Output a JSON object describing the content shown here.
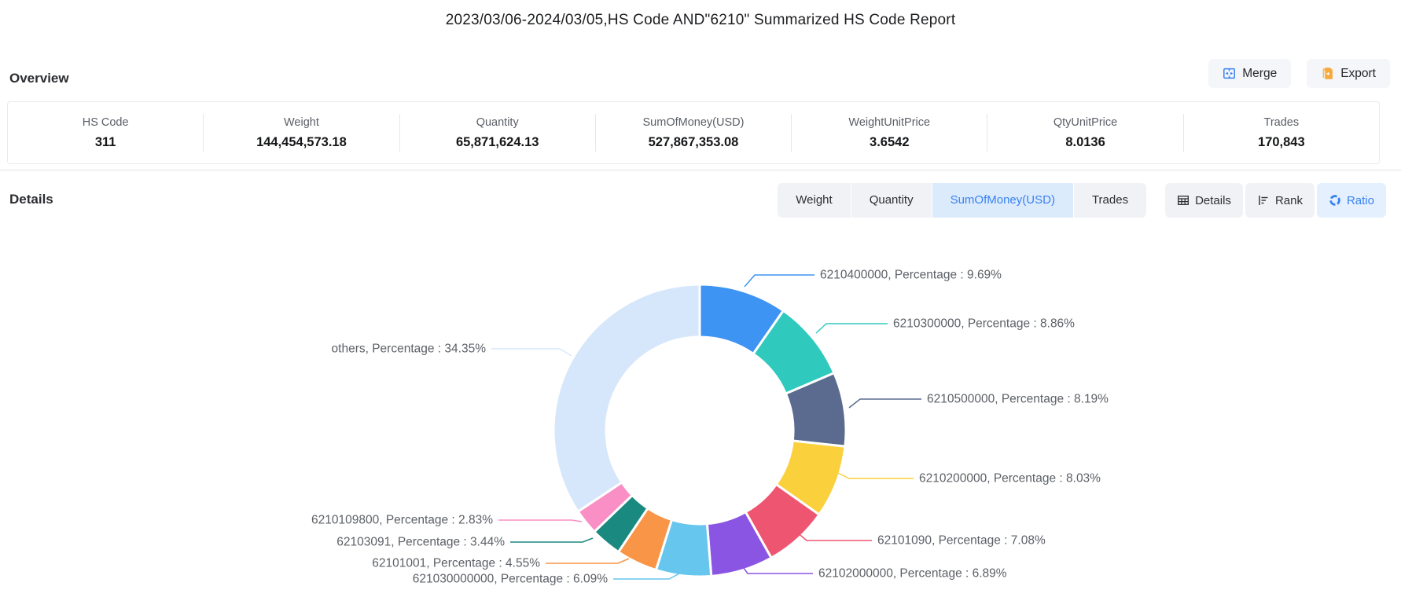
{
  "header": {
    "title": "2023/03/06-2024/03/05,HS Code AND\"6210\" Summarized HS Code Report"
  },
  "overview": {
    "section_title": "Overview",
    "merge_label": "Merge",
    "export_label": "Export",
    "stats": [
      {
        "label": "HS Code",
        "value": "311"
      },
      {
        "label": "Weight",
        "value": "144,454,573.18"
      },
      {
        "label": "Quantity",
        "value": "65,871,624.13"
      },
      {
        "label": "SumOfMoney(USD)",
        "value": "527,867,353.08"
      },
      {
        "label": "WeightUnitPrice",
        "value": "3.6542"
      },
      {
        "label": "QtyUnitPrice",
        "value": "8.0136"
      },
      {
        "label": "Trades",
        "value": "170,843"
      }
    ]
  },
  "details": {
    "section_title": "Details",
    "tabs": [
      {
        "label": "Weight",
        "active": false
      },
      {
        "label": "Quantity",
        "active": false
      },
      {
        "label": "SumOfMoney(USD)",
        "active": true
      },
      {
        "label": "Trades",
        "active": false
      }
    ],
    "view_buttons": [
      {
        "label": "Details",
        "icon": "table-icon",
        "active": false
      },
      {
        "label": "Rank",
        "icon": "rank-icon",
        "active": false
      },
      {
        "label": "Ratio",
        "icon": "donut-icon",
        "active": true
      }
    ]
  },
  "chart_data": {
    "type": "pie",
    "donut": true,
    "legend_position": "none",
    "label_template": "{name},  Percentage : {value}%",
    "segments": [
      {
        "name": "6210400000",
        "value": 9.69,
        "color": "#3D94F2"
      },
      {
        "name": "6210300000",
        "value": 8.86,
        "color": "#30C9BE"
      },
      {
        "name": "6210500000",
        "value": 8.19,
        "color": "#5A6B8F"
      },
      {
        "name": "6210200000",
        "value": 8.03,
        "color": "#FAD03C"
      },
      {
        "name": "62101090",
        "value": 7.08,
        "color": "#EE5570"
      },
      {
        "name": "62102000000",
        "value": 6.89,
        "color": "#8B55E3"
      },
      {
        "name": "621030000000",
        "value": 6.09,
        "color": "#66C6EE"
      },
      {
        "name": "62101001",
        "value": 4.55,
        "color": "#F89546"
      },
      {
        "name": "62103091",
        "value": 3.44,
        "color": "#1A897F"
      },
      {
        "name": "6210109800",
        "value": 2.83,
        "color": "#F98FC4"
      },
      {
        "name": "others",
        "value": 34.35,
        "color": "#D6E7FB"
      }
    ],
    "colors": {
      "accent_blue": "#3981F1",
      "export_orange": "#F7A93C",
      "label_text": "#5C6066"
    }
  }
}
